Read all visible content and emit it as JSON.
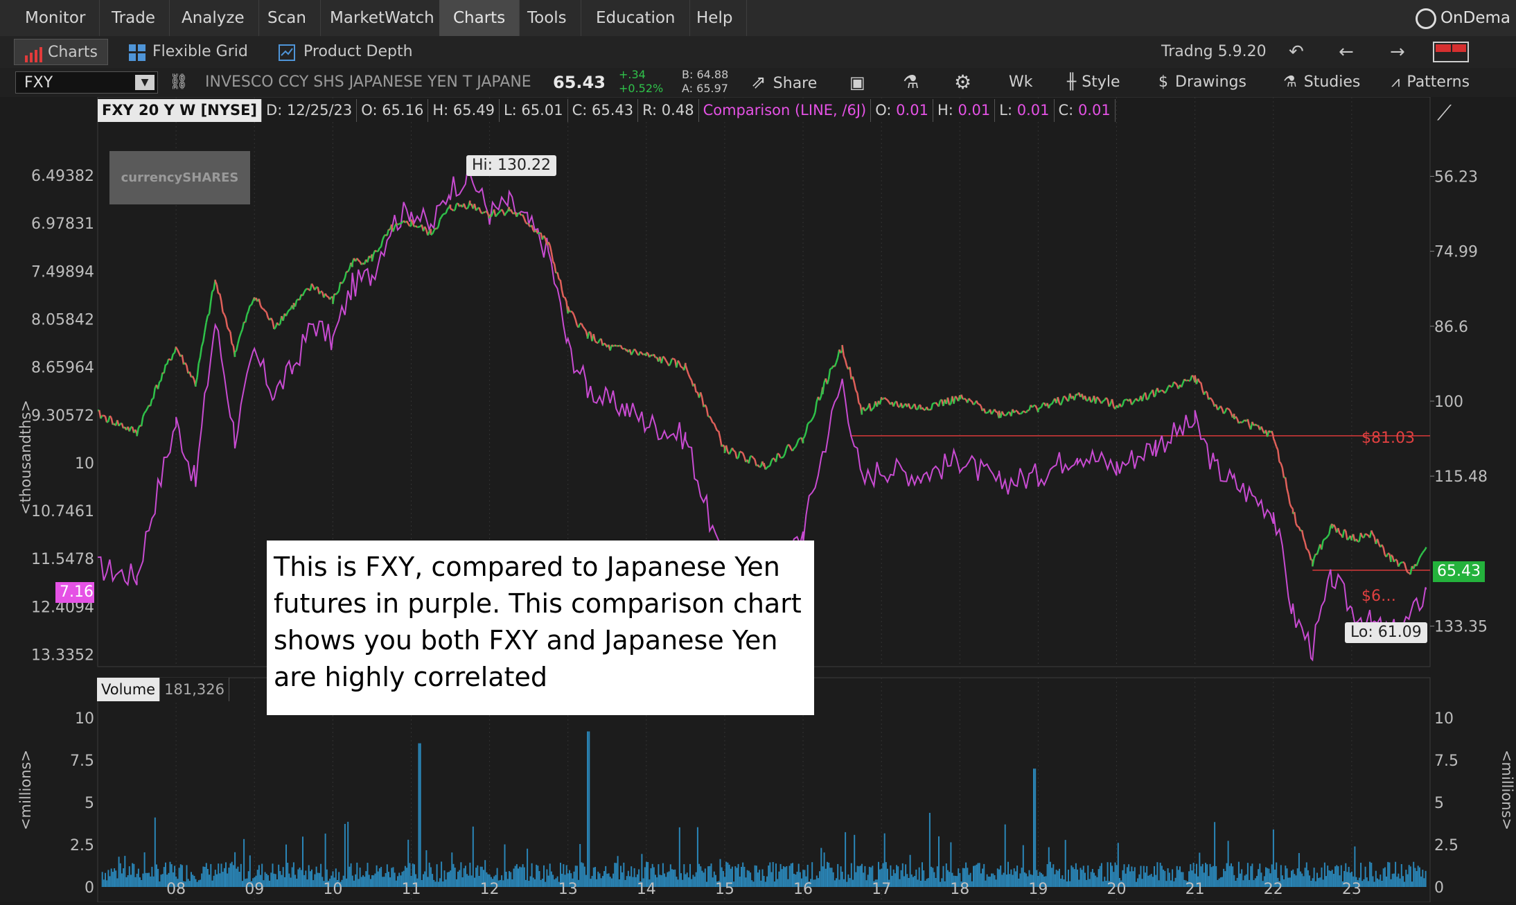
{
  "menu": {
    "items": [
      "Monitor",
      "Trade",
      "Analyze",
      "Scan",
      "MarketWatch",
      "Charts",
      "Tools",
      "Education",
      "Help"
    ],
    "active": "Charts",
    "right_label": "OnDema"
  },
  "subtabs": {
    "charts_label": "Charts",
    "flexible_grid_label": "Flexible Grid",
    "product_depth_label": "Product Depth",
    "version_label": "Tradng 5.9.20"
  },
  "symbol_bar": {
    "symbol": "FXY",
    "description": "INVESCO CCY SHS JAPANESE YEN T JAPANE...",
    "last": "65.43",
    "change": "+.34",
    "change_pct": "+0.52%",
    "bid": "B: 64.88",
    "ask": "A: 65.97",
    "share_label": "Share",
    "period_label": "Wk",
    "style_label": "Style",
    "drawings_label": "Drawings",
    "studies_label": "Studies",
    "patterns_label": "Patterns"
  },
  "info_bar": {
    "title": "FXY 20 Y W [NYSE]",
    "date": "D: 12/25/23",
    "open": "O: 65.16",
    "high": "H: 65.49",
    "low": "L: 65.01",
    "close": "C: 65.43",
    "range": "R: 0.48",
    "comparison": "Comparison (LINE, /6J)",
    "c_open_label": "O:",
    "c_open": "0.01",
    "c_high_label": "H:",
    "c_high": "0.01",
    "c_low_label": "L:",
    "c_low": "0.01",
    "c_close_label": "C:",
    "c_close": "0.01"
  },
  "logo_text": "currencySHARES",
  "annotation": "This is FXY, compared to Japanese Yen futures in purple. This comparison chart shows you both FXY and Japanese Yen are highly correlated",
  "price_panel": {
    "left_axis_label": "<thousandths>",
    "left_ticks": [
      "13.3352",
      "12.4094",
      "11.5478",
      "10.7461",
      "10",
      "9.30572",
      "8.65964",
      "8.05842",
      "7.49894",
      "6.97831",
      "6.49382"
    ],
    "right_ticks": [
      "133.35",
      "115.48",
      "100",
      "86.6",
      "74.99",
      "56.23"
    ],
    "hi_label": "Hi: 130.22",
    "lo_label": "Lo: 61.09",
    "level_1_label": "$81.03",
    "level_2_label": "$6…",
    "comparison_badge": "7.16",
    "last_badge": "65.43"
  },
  "volume_panel": {
    "label": "Volume",
    "value": "181,326",
    "axis_label": "<millions>",
    "ticks": [
      "10",
      "7.5",
      "5",
      "2.5",
      "0"
    ]
  },
  "x_labels": [
    "08",
    "09",
    "10",
    "11",
    "12",
    "13",
    "14",
    "15",
    "16",
    "17",
    "18",
    "19",
    "20",
    "21",
    "22",
    "23"
  ],
  "colors": {
    "up": "#2fc24a",
    "down": "#e0605a",
    "comparison": "#c84bd1",
    "level": "#d93a3a",
    "volume": "#2a86b8"
  },
  "chart_data": {
    "type": "line",
    "x_unit": "year",
    "x": [
      2007.0,
      2007.5,
      2008.0,
      2008.25,
      2008.5,
      2008.75,
      2009.0,
      2009.25,
      2009.5,
      2009.75,
      2010.0,
      2010.25,
      2010.5,
      2010.75,
      2011.0,
      2011.25,
      2011.5,
      2011.75,
      2012.0,
      2012.25,
      2012.5,
      2012.75,
      2013.0,
      2013.25,
      2013.5,
      2013.75,
      2014.0,
      2014.5,
      2015.0,
      2015.5,
      2016.0,
      2016.25,
      2016.5,
      2016.75,
      2017.0,
      2017.5,
      2018.0,
      2018.5,
      2019.0,
      2019.5,
      2020.0,
      2020.5,
      2021.0,
      2021.25,
      2021.5,
      2022.0,
      2022.25,
      2022.5,
      2022.75,
      2023.0,
      2023.25,
      2023.5,
      2023.75,
      2023.95
    ],
    "series": [
      {
        "name": "FXY",
        "values": [
          84.5,
          81.5,
          96.0,
          89.5,
          109.0,
          95.0,
          106.0,
          100.0,
          104.0,
          108.0,
          105.0,
          113.0,
          114.0,
          120.5,
          122.0,
          119.5,
          125.5,
          126.5,
          124.0,
          125.0,
          122.0,
          117.0,
          103.0,
          98.5,
          96.0,
          95.5,
          94.5,
          92.5,
          79.0,
          76.5,
          80.5,
          88.5,
          96.0,
          85.0,
          86.5,
          85.5,
          87.0,
          84.5,
          85.5,
          87.5,
          86.0,
          88.0,
          90.5,
          86.0,
          84.0,
          81.0,
          70.0,
          63.5,
          68.0,
          66.5,
          67.0,
          64.0,
          62.5,
          65.43
        ]
      },
      {
        "name": "/6J",
        "values": [
          7.4,
          7.3,
          9.2,
          8.4,
          10.7,
          9.0,
          10.2,
          9.6,
          10.0,
          10.7,
          10.4,
          11.3,
          11.5,
          12.4,
          12.7,
          12.3,
          13.1,
          13.35,
          12.6,
          12.8,
          12.4,
          11.9,
          10.3,
          9.7,
          9.5,
          9.4,
          9.2,
          9.0,
          7.3,
          7.15,
          7.8,
          8.8,
          9.8,
          8.4,
          8.6,
          8.5,
          8.7,
          8.4,
          8.5,
          8.8,
          8.6,
          8.9,
          9.2,
          8.6,
          8.4,
          8.05,
          6.9,
          6.55,
          7.3,
          6.95,
          6.8,
          6.7,
          6.85,
          7.16
        ]
      }
    ],
    "y_right": {
      "label": "FXY price",
      "ticks": [
        56.23,
        74.99,
        86.6,
        100,
        115.48,
        133.35
      ],
      "scale": "log"
    },
    "y_left": {
      "label": "<thousandths>",
      "ticks": [
        6.49382,
        6.97831,
        7.49894,
        8.05842,
        8.65964,
        9.30572,
        10,
        10.7461,
        11.5478,
        12.4094,
        13.3352
      ],
      "scale": "log"
    },
    "annotations": {
      "high": 130.22,
      "low": 61.09,
      "horizontal_levels": [
        81.03
      ]
    },
    "volume_ylim_millions": [
      0,
      10
    ]
  }
}
